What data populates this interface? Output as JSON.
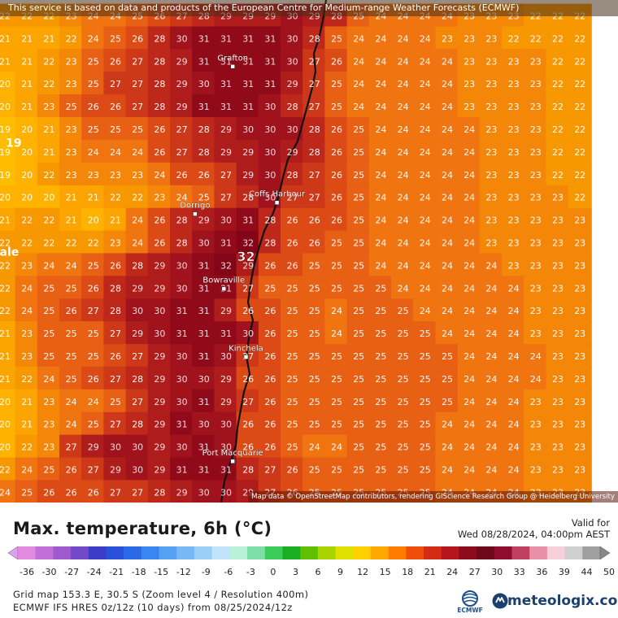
{
  "banner": "This service is based on data and products of the European Centre for Medium-range Weather Forecasts (ECMWF)",
  "attribution": "Map data © OpenStreetMap contributors, rendering GIScience Research Group @ Heidelberg University",
  "title": "Max. temperature, 6h (°C)",
  "valid_label": "Valid for",
  "valid_value": "Wed 08/28/2024, 04:00pm AEST",
  "footer": {
    "line1": "Grid map 153.3 E, 30.5 S (Zoom level 4 / Resolution 400m)",
    "line2": "ECMWF IFS HRES 0z/12z (10 days) from 08/25/2024/12z"
  },
  "logos": {
    "ecmwf": "ECMWF",
    "meteologix": "meteologix.com"
  },
  "places": [
    {
      "name": "Grafton",
      "row": 2,
      "col": 10.3
    },
    {
      "name": "Coffs Harbour",
      "row": 8,
      "col": 12.3
    },
    {
      "name": "Dorrigo",
      "row": 8.5,
      "col": 8.6
    },
    {
      "name": "Bowraville",
      "row": 11.8,
      "col": 9.9
    },
    {
      "name": "Kinchela",
      "row": 14.8,
      "col": 10.9
    },
    {
      "name": "Port Macquarie",
      "row": 19.4,
      "col": 10.3
    }
  ],
  "highlight": {
    "value": "32",
    "row": 10.6,
    "col": 10.9
  },
  "edge_labels": [
    {
      "text": "19",
      "row": 5.6,
      "col": 0.4
    },
    {
      "text": "ale",
      "row": 10.4,
      "col": 0.2
    }
  ],
  "grid": {
    "rows": [
      [
        22,
        22,
        22,
        23,
        24,
        24,
        25,
        26,
        27,
        28,
        29,
        29,
        29,
        30,
        29,
        28,
        25,
        24,
        24,
        24,
        24,
        23,
        23,
        23,
        22,
        22,
        22
      ],
      [
        21,
        21,
        21,
        22,
        24,
        25,
        26,
        28,
        30,
        31,
        31,
        31,
        31,
        30,
        28,
        25,
        24,
        24,
        24,
        24,
        23,
        23,
        23,
        22,
        22,
        22,
        22
      ],
      [
        21,
        21,
        22,
        23,
        25,
        26,
        27,
        28,
        29,
        31,
        31,
        31,
        31,
        30,
        27,
        26,
        24,
        24,
        24,
        24,
        24,
        23,
        23,
        23,
        23,
        22,
        22
      ],
      [
        20,
        21,
        22,
        23,
        25,
        27,
        27,
        28,
        29,
        30,
        31,
        31,
        31,
        29,
        27,
        25,
        24,
        24,
        24,
        24,
        24,
        23,
        23,
        23,
        23,
        22,
        22
      ],
      [
        20,
        21,
        23,
        25,
        26,
        26,
        27,
        28,
        29,
        31,
        31,
        31,
        30,
        28,
        27,
        25,
        24,
        24,
        24,
        24,
        24,
        23,
        23,
        23,
        23,
        22,
        22
      ],
      [
        19,
        20,
        21,
        23,
        25,
        25,
        25,
        26,
        27,
        28,
        29,
        30,
        30,
        30,
        28,
        26,
        25,
        24,
        24,
        24,
        24,
        24,
        23,
        23,
        23,
        22,
        22
      ],
      [
        19,
        20,
        21,
        23,
        24,
        24,
        24,
        26,
        27,
        28,
        29,
        29,
        30,
        29,
        28,
        26,
        25,
        24,
        24,
        24,
        24,
        24,
        23,
        23,
        23,
        22,
        22
      ],
      [
        19,
        20,
        22,
        23,
        23,
        23,
        23,
        24,
        26,
        26,
        27,
        29,
        30,
        28,
        27,
        26,
        25,
        24,
        24,
        24,
        24,
        24,
        23,
        23,
        23,
        22,
        22
      ],
      [
        20,
        20,
        20,
        21,
        21,
        22,
        22,
        23,
        24,
        25,
        27,
        28,
        30,
        27,
        27,
        26,
        25,
        24,
        24,
        24,
        24,
        24,
        23,
        23,
        23,
        23,
        22
      ],
      [
        21,
        22,
        22,
        21,
        20,
        21,
        24,
        26,
        28,
        29,
        30,
        31,
        28,
        26,
        26,
        26,
        25,
        24,
        24,
        24,
        24,
        24,
        23,
        23,
        23,
        23,
        23
      ],
      [
        22,
        22,
        22,
        22,
        22,
        23,
        24,
        26,
        28,
        30,
        31,
        32,
        28,
        26,
        26,
        25,
        25,
        24,
        24,
        24,
        24,
        24,
        23,
        23,
        23,
        23,
        23
      ],
      [
        22,
        23,
        24,
        24,
        25,
        26,
        28,
        29,
        30,
        31,
        32,
        29,
        26,
        26,
        25,
        25,
        25,
        24,
        24,
        24,
        24,
        24,
        24,
        23,
        23,
        23,
        23
      ],
      [
        22,
        24,
        25,
        25,
        26,
        28,
        29,
        29,
        30,
        31,
        31,
        27,
        25,
        25,
        25,
        25,
        25,
        25,
        24,
        24,
        24,
        24,
        24,
        24,
        23,
        23,
        23
      ],
      [
        22,
        24,
        25,
        26,
        27,
        28,
        30,
        30,
        31,
        31,
        29,
        26,
        26,
        25,
        25,
        24,
        25,
        25,
        25,
        24,
        24,
        24,
        24,
        24,
        23,
        23,
        23
      ],
      [
        21,
        23,
        25,
        25,
        25,
        27,
        29,
        30,
        31,
        31,
        31,
        30,
        26,
        25,
        25,
        24,
        25,
        25,
        25,
        25,
        24,
        24,
        24,
        24,
        23,
        23,
        23
      ],
      [
        21,
        23,
        25,
        25,
        25,
        26,
        27,
        29,
        30,
        31,
        30,
        27,
        26,
        25,
        25,
        25,
        25,
        25,
        25,
        25,
        25,
        24,
        24,
        24,
        24,
        23,
        23
      ],
      [
        21,
        22,
        24,
        25,
        26,
        27,
        28,
        29,
        30,
        30,
        29,
        26,
        26,
        25,
        25,
        25,
        25,
        25,
        25,
        25,
        25,
        24,
        24,
        24,
        24,
        23,
        23
      ],
      [
        20,
        21,
        23,
        24,
        24,
        25,
        27,
        29,
        30,
        31,
        29,
        27,
        26,
        25,
        25,
        25,
        25,
        25,
        25,
        25,
        25,
        24,
        24,
        24,
        23,
        23,
        23
      ],
      [
        20,
        21,
        23,
        24,
        25,
        27,
        28,
        29,
        31,
        30,
        30,
        26,
        26,
        25,
        25,
        25,
        25,
        25,
        25,
        25,
        24,
        24,
        24,
        24,
        23,
        23,
        23
      ],
      [
        20,
        22,
        23,
        27,
        29,
        30,
        30,
        29,
        30,
        31,
        30,
        26,
        26,
        25,
        24,
        24,
        25,
        25,
        25,
        25,
        24,
        24,
        24,
        24,
        23,
        23,
        23
      ],
      [
        22,
        24,
        25,
        26,
        27,
        29,
        30,
        29,
        31,
        31,
        31,
        28,
        27,
        26,
        25,
        25,
        25,
        25,
        25,
        25,
        24,
        24,
        24,
        24,
        23,
        23,
        23
      ],
      [
        24,
        25,
        26,
        26,
        26,
        27,
        27,
        28,
        29,
        30,
        30,
        29,
        27,
        26,
        25,
        25,
        25,
        25,
        25,
        25,
        24,
        24,
        24,
        24,
        23,
        23,
        23
      ]
    ]
  },
  "colorbar": {
    "ticks": [
      "-36",
      "-30",
      "-27",
      "-24",
      "-21",
      "-18",
      "-15",
      "-12",
      "-9",
      "-6",
      "-3",
      "0",
      "3",
      "6",
      "9",
      "12",
      "15",
      "18",
      "21",
      "24",
      "27",
      "30",
      "33",
      "36",
      "39",
      "44",
      "50"
    ]
  }
}
